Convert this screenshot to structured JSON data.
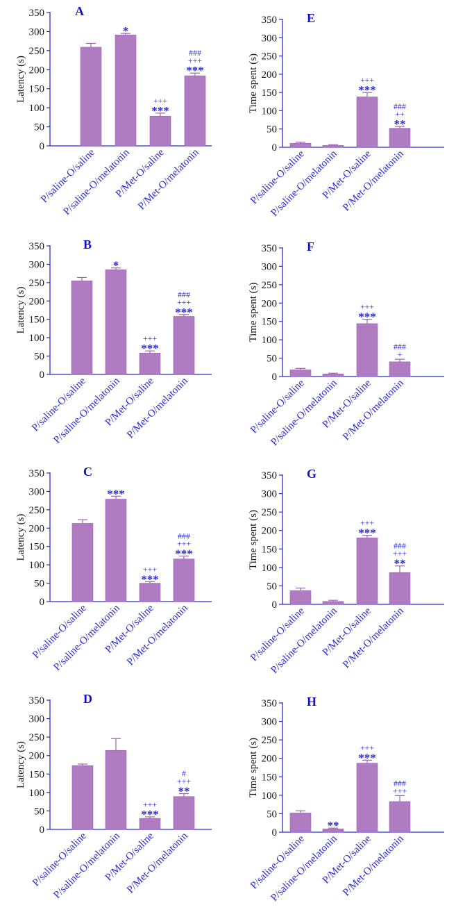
{
  "colors": {
    "axis": "#2b2bd4",
    "bar": "#b07cc1",
    "bar_edge": "#9b66ad",
    "sig": "#2b2bd4",
    "panel_letter": "#1010c8"
  },
  "chart_data": [
    {
      "type": "bar",
      "title": "A",
      "ylabel": "Latency (s)",
      "ylim": [
        0,
        350
      ],
      "yticks": [
        0,
        50,
        100,
        150,
        200,
        250,
        300,
        350
      ],
      "categories": [
        "P/saline-O/saline",
        "P/saline-O/melatonin",
        "P/Met-O/saline",
        "P/Met-O/melatonin"
      ],
      "values": [
        259,
        291,
        78,
        184
      ],
      "errors": [
        10,
        4,
        8,
        7
      ],
      "annotations": [
        [],
        [
          "*"
        ],
        [
          "+++",
          "***"
        ],
        [
          "###",
          "+++",
          "***"
        ]
      ]
    },
    {
      "type": "bar",
      "title": "B",
      "ylabel": "Latency (s)",
      "ylim": [
        0,
        350
      ],
      "yticks": [
        0,
        50,
        100,
        150,
        200,
        250,
        300,
        350
      ],
      "categories": [
        "P/saline-O/saline",
        "P/saline-O/melatonin",
        "P/Met-O/saline",
        "P/Met-O/melatonin"
      ],
      "values": [
        255,
        285,
        58,
        158
      ],
      "errors": [
        9,
        5,
        6,
        5
      ],
      "annotations": [
        [],
        [
          "*"
        ],
        [
          "+++",
          "***"
        ],
        [
          "###",
          "+++",
          "***"
        ]
      ]
    },
    {
      "type": "bar",
      "title": "C",
      "ylabel": "Latency (s)",
      "ylim": [
        0,
        350
      ],
      "yticks": [
        0,
        50,
        100,
        150,
        200,
        250,
        300,
        350
      ],
      "categories": [
        "P/saline-O/saline",
        "P/saline-O/melatonin",
        "P/Met-O/saline",
        "P/Met-O/melatonin"
      ],
      "values": [
        213,
        279,
        50,
        116
      ],
      "errors": [
        10,
        8,
        4,
        8
      ],
      "annotations": [
        [],
        [
          "***"
        ],
        [
          "+++",
          "***"
        ],
        [
          "###",
          "+++",
          "***"
        ]
      ]
    },
    {
      "type": "bar",
      "title": "D",
      "ylabel": "Latency (s)",
      "ylim": [
        0,
        350
      ],
      "yticks": [
        0,
        50,
        100,
        150,
        200,
        250,
        300,
        350
      ],
      "categories": [
        "P/saline-O/saline",
        "P/saline-O/melatonin",
        "P/Met-O/saline",
        "P/Met-O/melatonin"
      ],
      "values": [
        173,
        214,
        30,
        89
      ],
      "errors": [
        4,
        32,
        4,
        8
      ],
      "annotations": [
        [],
        [],
        [
          "+++",
          "***"
        ],
        [
          "#",
          "+++",
          "**"
        ]
      ]
    },
    {
      "type": "bar",
      "title": "E",
      "ylabel": "Time spent (s)",
      "ylim": [
        0,
        350
      ],
      "yticks": [
        0,
        50,
        100,
        150,
        200,
        250,
        300,
        350
      ],
      "categories": [
        "P/saline-O/saline",
        "P/saline-O/melatonin",
        "P/Met-O/saline",
        "P/Met-O/melatonin"
      ],
      "values": [
        11,
        5,
        138,
        52
      ],
      "errors": [
        3,
        2,
        12,
        5
      ],
      "annotations": [
        [],
        [],
        [
          "+++",
          "***"
        ],
        [
          "###",
          "++",
          "**"
        ]
      ]
    },
    {
      "type": "bar",
      "title": "F",
      "ylabel": "Time spent (s)",
      "ylim": [
        0,
        350
      ],
      "yticks": [
        0,
        50,
        100,
        150,
        200,
        250,
        300,
        350
      ],
      "categories": [
        "P/saline-O/saline",
        "P/saline-O/melatonin",
        "P/Met-O/saline",
        "P/Met-O/melatonin"
      ],
      "values": [
        18,
        7,
        144,
        40
      ],
      "errors": [
        4,
        2,
        12,
        7
      ],
      "annotations": [
        [],
        [],
        [
          "+++",
          "***"
        ],
        [
          "###",
          "+"
        ]
      ]
    },
    {
      "type": "bar",
      "title": "G",
      "ylabel": "Time spent (s)",
      "ylim": [
        0,
        350
      ],
      "yticks": [
        0,
        50,
        100,
        150,
        200,
        250,
        300,
        350
      ],
      "categories": [
        "P/saline-O/saline",
        "P/saline-O/melatonin",
        "P/Met-O/saline",
        "P/Met-O/melatonin"
      ],
      "values": [
        37,
        8,
        180,
        86
      ],
      "errors": [
        7,
        3,
        7,
        18
      ],
      "annotations": [
        [],
        [],
        [
          "+++",
          "***"
        ],
        [
          "###",
          "+++",
          "**"
        ]
      ]
    },
    {
      "type": "bar",
      "title": "H",
      "ylabel": "Time spent (s)",
      "ylim": [
        0,
        350
      ],
      "yticks": [
        0,
        50,
        100,
        150,
        200,
        250,
        300,
        350
      ],
      "categories": [
        "P/saline-O/saline",
        "P/saline-O/melatonin",
        "P/Met-O/saline",
        "P/Met-O/melatonin"
      ],
      "values": [
        52,
        9,
        187,
        83
      ],
      "errors": [
        6,
        2,
        8,
        16
      ],
      "annotations": [
        [],
        [
          "**"
        ],
        [
          "+++",
          "***"
        ],
        [
          "###",
          "+++"
        ]
      ]
    }
  ]
}
